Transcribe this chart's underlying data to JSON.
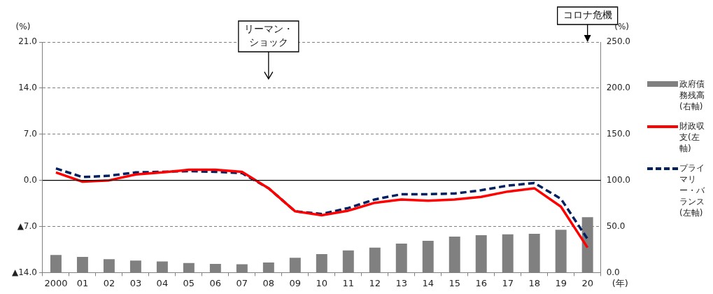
{
  "chart_data": {
    "type": "line",
    "xlabel": "(年)",
    "ylabel": "(%)",
    "y2label": "(%)",
    "categories": [
      "2000",
      "01",
      "02",
      "03",
      "04",
      "05",
      "06",
      "07",
      "08",
      "09",
      "10",
      "11",
      "12",
      "13",
      "14",
      "15",
      "16",
      "17",
      "18",
      "19",
      "20"
    ],
    "series": [
      {
        "name": "政府債務残高(右軸)",
        "type": "bar",
        "axis": "y2",
        "color": "#808080",
        "values": [
          19,
          17,
          14.5,
          13,
          12,
          10.3,
          9.5,
          9,
          11,
          16,
          20,
          24,
          27,
          31.5,
          34.5,
          39,
          40.5,
          41.5,
          42,
          46.5,
          60
        ]
      },
      {
        "name": "財政収支(左軸)",
        "color": "#ff0000",
        "line_style": "solid",
        "values": [
          1.2,
          -0.2,
          0,
          0.9,
          1.2,
          1.6,
          1.6,
          1.3,
          -1.2,
          -4.7,
          -5.3,
          -4.6,
          -3.4,
          -2.9,
          -3.1,
          -2.9,
          -2.5,
          -1.7,
          -1.2,
          -4.0,
          -10.2
        ]
      },
      {
        "name": "プライマリー・バランス(左軸)",
        "color": "#002060",
        "line_style": "dashed",
        "values": [
          1.8,
          0.5,
          0.7,
          1.2,
          1.3,
          1.4,
          1.3,
          1.1,
          -1.2,
          -4.7,
          -5.1,
          -4.2,
          -2.9,
          -2.1,
          -2.1,
          -2.0,
          -1.5,
          -0.8,
          -0.4,
          -2.8,
          -8.9
        ]
      }
    ],
    "ylim": [
      -14,
      21
    ],
    "yticks": [
      {
        "value": -14,
        "label": "▲14.0"
      },
      {
        "value": -7,
        "label": "▲7.0"
      },
      {
        "value": 0,
        "label": "0.0"
      },
      {
        "value": 7,
        "label": "7.0"
      },
      {
        "value": 14,
        "label": "14.0"
      },
      {
        "value": 21,
        "label": "21.0"
      }
    ],
    "y2lim": [
      0,
      250
    ],
    "y2ticks": [
      {
        "value": 0,
        "label": "0.0"
      },
      {
        "value": 50,
        "label": "50.0"
      },
      {
        "value": 100,
        "label": "100.0"
      },
      {
        "value": 150,
        "label": "150.0"
      },
      {
        "value": 200,
        "label": "200.0"
      },
      {
        "value": 250,
        "label": "250.0"
      }
    ],
    "grid": "y",
    "legend": "right",
    "marker": "none",
    "ref_lines": [
      {
        "axis": "y",
        "value": 0,
        "color": "#000000"
      }
    ],
    "annotations": [
      "リーマン・ショック",
      "コロナ危機"
    ]
  }
}
